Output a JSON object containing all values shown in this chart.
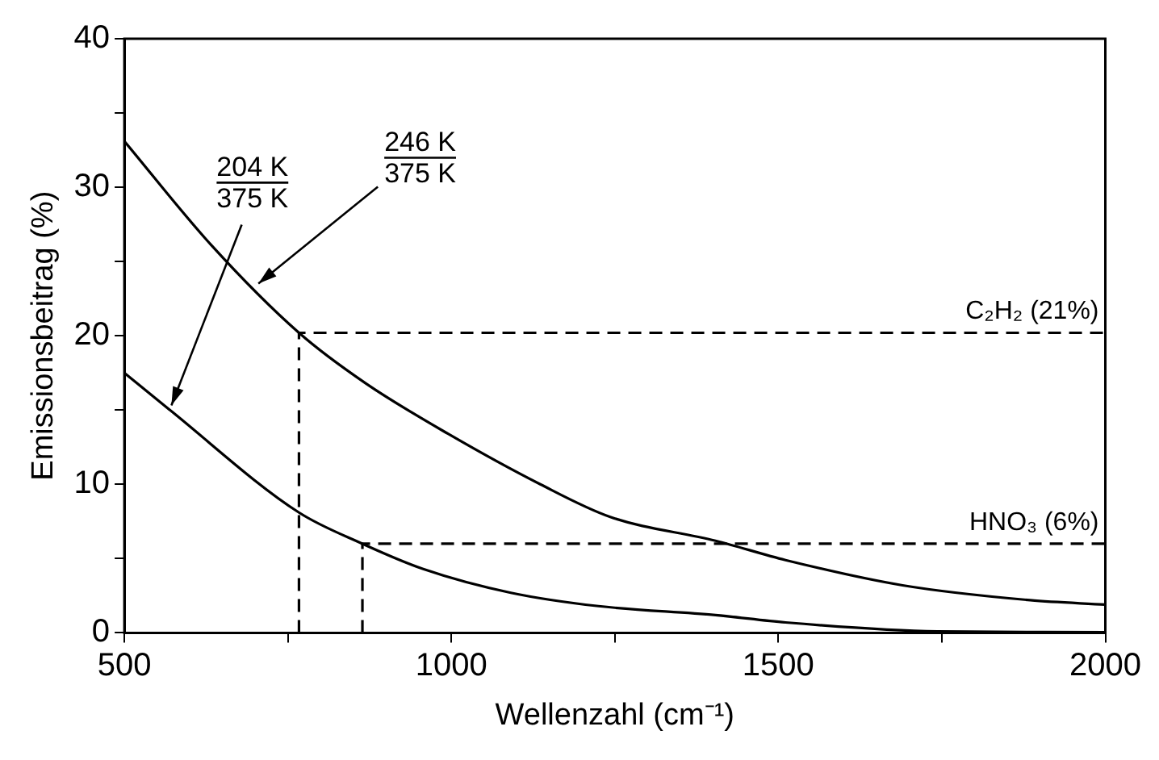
{
  "chart_data": {
    "type": "line",
    "xlabel": "Wellenzahl (cm⁻¹)",
    "ylabel": "Emissionsbeitrag (%)",
    "xlim": [
      500,
      2000
    ],
    "ylim": [
      0,
      40
    ],
    "xticks": [
      500,
      {
        "value": 750,
        "label": null
      },
      1000,
      {
        "value": 1250,
        "label": null
      },
      1500,
      {
        "value": 1750,
        "label": null
      },
      2000
    ],
    "yticks": [
      0,
      {
        "value": 5,
        "label": null
      },
      10,
      {
        "value": 15,
        "label": null
      },
      20,
      {
        "value": 25,
        "label": null
      },
      30,
      {
        "value": 35,
        "label": null
      },
      40
    ],
    "grid": false,
    "legend": false,
    "marker": "none",
    "series": [
      {
        "color": "#000000",
        "line_style": "solid",
        "x": [
          500,
          633,
          767,
          869,
          995,
          1136,
          1243,
          1404,
          1511,
          1690,
          1885,
          2000
        ],
        "values": [
          33.1,
          26.1,
          20.2,
          16.8,
          13.4,
          10.0,
          7.8,
          6.2,
          4.9,
          3.2,
          2.2,
          1.9
        ]
      },
      {
        "color": "#000000",
        "line_style": "solid",
        "x": [
          500,
          567,
          767,
          864,
          957,
          1091,
          1225,
          1404,
          1511,
          1743,
          2000
        ],
        "values": [
          17.5,
          15.1,
          8.1,
          6.0,
          4.3,
          2.7,
          1.8,
          1.2,
          0.7,
          0.1,
          0.05
        ]
      },
      {
        "color": "#000000",
        "line_style": "dashed",
        "x": [
          767,
          767,
          2000
        ],
        "values": [
          0,
          20.2,
          20.2
        ]
      },
      {
        "color": "#000000",
        "line_style": "dashed",
        "x": [
          864,
          864,
          2000
        ],
        "values": [
          0,
          6.0,
          6.0
        ]
      }
    ],
    "annotations": [
      {
        "text": "204 K\n375 K",
        "x": 567,
        "y": 15.1
      },
      {
        "text": "246 K\n375 K",
        "x": 700,
        "y": 23.3
      },
      {
        "text": "C₂H₂ (21%)",
        "x": 2000,
        "y": 20.2
      },
      {
        "text": "HNO₃ (6%)",
        "x": 2000,
        "y": 6.0
      }
    ]
  }
}
